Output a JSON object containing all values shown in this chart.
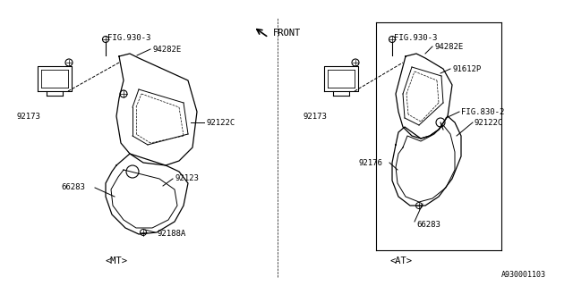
{
  "title": "",
  "background_color": "#ffffff",
  "fig_width": 6.4,
  "fig_height": 3.2,
  "dpi": 100,
  "labels": {
    "FIG930_3_left": "FIG.930-3",
    "94282E_left": "94282E",
    "92173_left": "92173",
    "92122C_left": "92122C",
    "92123": "92123",
    "66283_left": "66283",
    "92188A": "92188A",
    "MT": "<MT>",
    "FIG930_3_right": "FIG.930-3",
    "94282E_right": "94282E",
    "91612P": "91612P",
    "FIG830_2": "FIG.830-2",
    "92173_right": "92173",
    "92122C_right": "92122C",
    "92176": "92176",
    "66283_right": "66283",
    "AT": "<AT>",
    "FRONT": "FRONT",
    "part_num": "A930001103"
  },
  "line_color": "#000000",
  "text_color": "#000000",
  "font_size": 6.5
}
